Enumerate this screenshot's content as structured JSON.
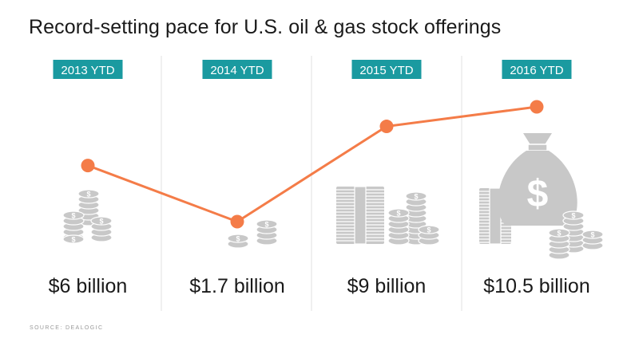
{
  "title": "Record-setting pace for U.S. oil & gas stock offerings",
  "source": "SOURCE: DEALOGIC",
  "colors": {
    "line": "#f47c48",
    "badge": "#1a9aa0",
    "icon": "#c8c8c8",
    "divider": "#e2e2e2"
  },
  "chart_data": {
    "type": "line",
    "categories": [
      "2013 YTD",
      "2014 YTD",
      "2015 YTD",
      "2016 YTD"
    ],
    "series": [
      {
        "values": [
          6,
          1.7,
          9,
          10.5
        ]
      }
    ],
    "value_labels": [
      "$6 billion",
      "$1.7 billion",
      "$9 billion",
      "$10.5 billion"
    ],
    "unit": "billion USD",
    "icons": [
      "coin-stacks-icon",
      "coin-stacks-icon",
      "cash-and-coins-icon",
      "money-bag-icon"
    ],
    "grid": false,
    "legend": "none"
  }
}
